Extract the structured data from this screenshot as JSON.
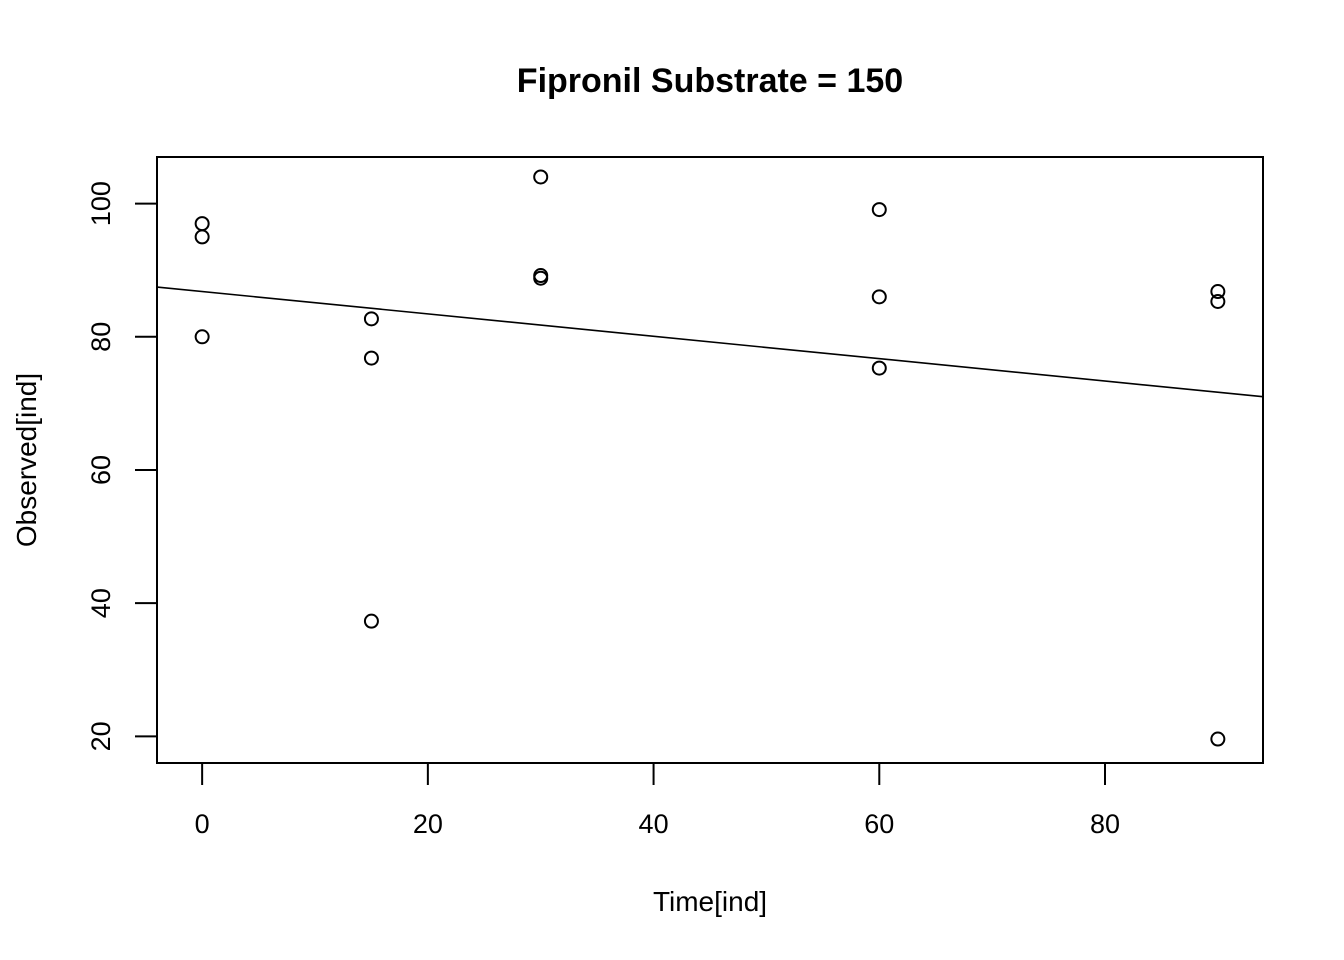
{
  "chart_data": {
    "type": "scatter",
    "title": "Fipronil Substrate = 150",
    "xlabel": "Time[ind]",
    "ylabel": "Observed[ind]",
    "xlim": [
      -4,
      94
    ],
    "ylim": [
      16,
      107
    ],
    "xticks": [
      0,
      20,
      40,
      60,
      80
    ],
    "yticks": [
      20,
      40,
      60,
      80,
      100
    ],
    "grid": false,
    "legend": "none",
    "points": [
      {
        "x": 0,
        "y": 97
      },
      {
        "x": 0,
        "y": 95
      },
      {
        "x": 0,
        "y": 80
      },
      {
        "x": 15,
        "y": 82.7
      },
      {
        "x": 15,
        "y": 76.8
      },
      {
        "x": 15,
        "y": 37.3
      },
      {
        "x": 30,
        "y": 104
      },
      {
        "x": 30,
        "y": 89.2
      },
      {
        "x": 30,
        "y": 88.8
      },
      {
        "x": 60,
        "y": 99.1
      },
      {
        "x": 60,
        "y": 86
      },
      {
        "x": 60,
        "y": 75.3
      },
      {
        "x": 90,
        "y": 86.8
      },
      {
        "x": 90,
        "y": 85.3
      },
      {
        "x": 90,
        "y": 19.6
      }
    ],
    "fit_line": {
      "intercept": 86.8,
      "slope": -0.168
    }
  }
}
